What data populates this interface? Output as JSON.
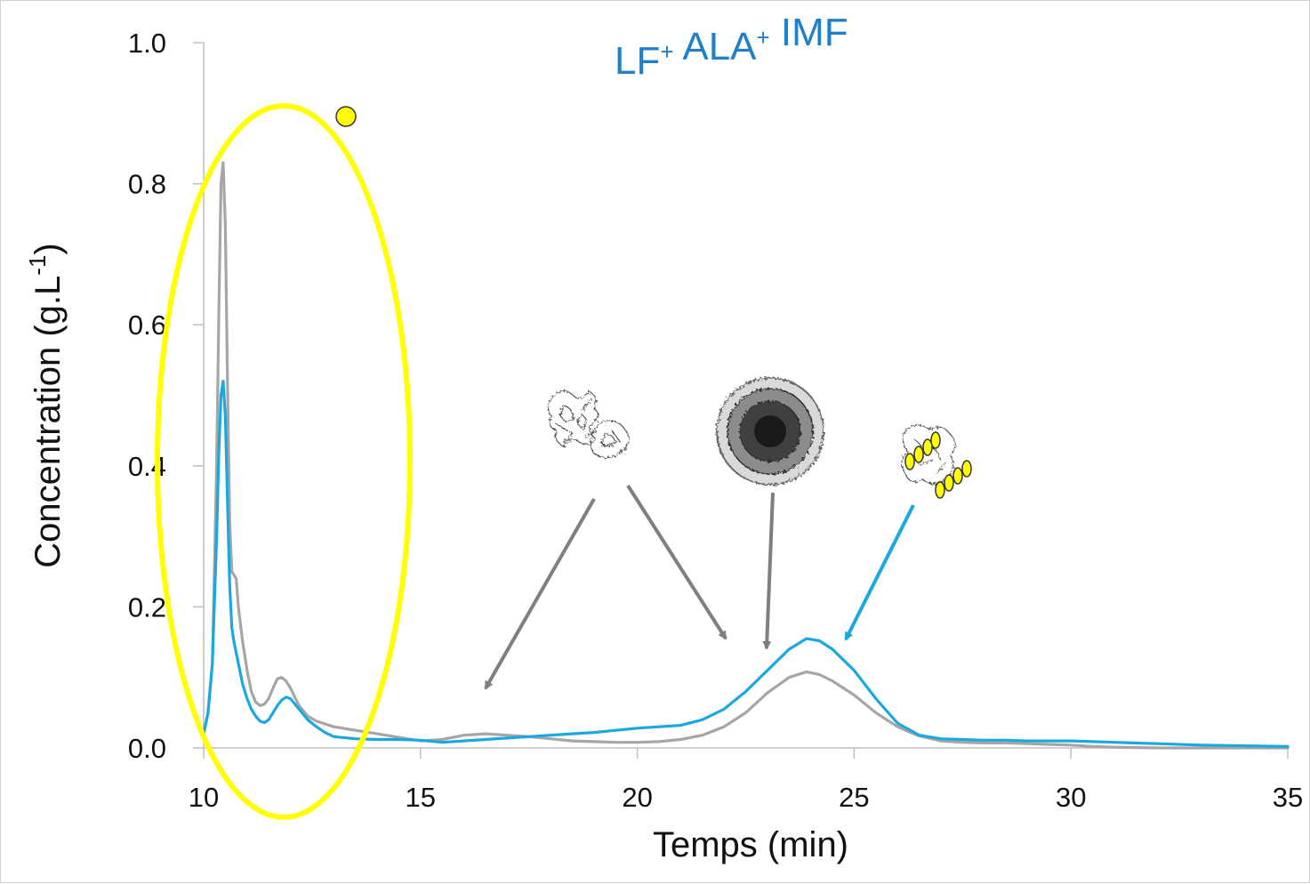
{
  "chart_data": {
    "type": "line",
    "title": {
      "parts": [
        {
          "text": "LF",
          "sup": "+"
        },
        {
          "text": " ALA",
          "sup": "+"
        },
        {
          "text": " IMF",
          "sup": ""
        }
      ]
    },
    "title_color": "#1f7fc8",
    "xlabel": "Temps (min)",
    "ylabel": "Concentration (g.L",
    "ylabel_sup": "-1",
    "ylabel_suffix": ")",
    "xlim": [
      10,
      35
    ],
    "ylim": [
      0.0,
      1.0
    ],
    "x_ticks": [
      10,
      15,
      20,
      25,
      30,
      35
    ],
    "x_tick_labels": [
      "10",
      "15",
      "20",
      "25",
      "30",
      "35"
    ],
    "y_ticks": [
      0.0,
      0.2,
      0.4,
      0.6,
      0.8,
      1.0
    ],
    "y_tick_labels": [
      "0.0",
      "0.2",
      "0.4",
      "0.6",
      "0.8",
      "1.0"
    ],
    "grid": false,
    "legend": "none",
    "series": [
      {
        "color": "#a6a6a6",
        "x": [
          10.0,
          10.1,
          10.2,
          10.3,
          10.35,
          10.4,
          10.45,
          10.5,
          10.55,
          10.6,
          10.65,
          10.7,
          10.75,
          10.8,
          10.9,
          11.0,
          11.1,
          11.2,
          11.3,
          11.4,
          11.5,
          11.6,
          11.7,
          11.8,
          11.9,
          12.0,
          12.2,
          12.4,
          12.6,
          13.0,
          13.5,
          14.0,
          14.5,
          15.0,
          15.5,
          16.0,
          16.5,
          17.0,
          17.5,
          18.0,
          18.5,
          19.0,
          19.5,
          20.0,
          20.5,
          21.0,
          21.5,
          22.0,
          22.5,
          23.0,
          23.5,
          23.9,
          24.2,
          24.5,
          25.0,
          25.5,
          26.0,
          26.5,
          27.0,
          27.5,
          28.0,
          28.5,
          29.0,
          29.5,
          30.0,
          30.5,
          31.0,
          32.0,
          33.0,
          34.0,
          35.0
        ],
        "y": [
          0.02,
          0.05,
          0.12,
          0.4,
          0.62,
          0.8,
          0.83,
          0.74,
          0.52,
          0.32,
          0.25,
          0.245,
          0.24,
          0.2,
          0.15,
          0.11,
          0.08,
          0.065,
          0.06,
          0.062,
          0.07,
          0.085,
          0.098,
          0.1,
          0.095,
          0.085,
          0.06,
          0.045,
          0.038,
          0.03,
          0.025,
          0.02,
          0.015,
          0.01,
          0.012,
          0.018,
          0.02,
          0.018,
          0.016,
          0.013,
          0.01,
          0.009,
          0.008,
          0.008,
          0.009,
          0.012,
          0.018,
          0.03,
          0.05,
          0.078,
          0.1,
          0.108,
          0.104,
          0.095,
          0.075,
          0.05,
          0.03,
          0.017,
          0.01,
          0.008,
          0.007,
          0.007,
          0.006,
          0.005,
          0.004,
          0.002,
          0.001,
          0.0,
          0.0,
          0.0,
          0.0
        ]
      },
      {
        "color": "#1ba8e0",
        "x": [
          10.0,
          10.1,
          10.2,
          10.3,
          10.35,
          10.4,
          10.45,
          10.5,
          10.55,
          10.6,
          10.65,
          10.7,
          10.8,
          10.9,
          11.0,
          11.1,
          11.2,
          11.3,
          11.4,
          11.5,
          11.6,
          11.7,
          11.8,
          11.9,
          12.0,
          12.2,
          12.4,
          12.6,
          12.8,
          13.0,
          13.5,
          14.0,
          14.5,
          15.0,
          15.5,
          16.0,
          16.5,
          17.0,
          17.5,
          18.0,
          18.5,
          19.0,
          19.5,
          20.0,
          20.5,
          21.0,
          21.5,
          22.0,
          22.5,
          23.0,
          23.5,
          23.9,
          24.2,
          24.5,
          25.0,
          25.5,
          26.0,
          26.5,
          27.0,
          27.5,
          28.0,
          28.5,
          29.0,
          29.5,
          30.0,
          30.5,
          31.0,
          32.0,
          33.0,
          34.0,
          35.0
        ],
        "y": [
          0.02,
          0.05,
          0.12,
          0.3,
          0.42,
          0.5,
          0.52,
          0.47,
          0.35,
          0.23,
          0.17,
          0.15,
          0.12,
          0.09,
          0.07,
          0.055,
          0.045,
          0.038,
          0.036,
          0.04,
          0.05,
          0.06,
          0.068,
          0.072,
          0.07,
          0.055,
          0.04,
          0.03,
          0.022,
          0.016,
          0.013,
          0.012,
          0.012,
          0.011,
          0.008,
          0.01,
          0.012,
          0.014,
          0.016,
          0.018,
          0.02,
          0.022,
          0.025,
          0.028,
          0.03,
          0.032,
          0.04,
          0.055,
          0.08,
          0.11,
          0.14,
          0.155,
          0.152,
          0.14,
          0.11,
          0.07,
          0.035,
          0.018,
          0.013,
          0.012,
          0.011,
          0.011,
          0.01,
          0.01,
          0.01,
          0.009,
          0.008,
          0.006,
          0.004,
          0.003,
          0.002
        ]
      }
    ],
    "annotations": {
      "highlight_ellipse_color": "#ffff00",
      "dot_color": "#ffff00",
      "arrow_gray_color": "#7f7f7f",
      "arrow_blue_color": "#1ba8e0",
      "molecule_icons": [
        "lactoferrin-aggregate-icon",
        "casein-micelle-icon",
        "lactoferrin-alactalbumin-complex-icon"
      ]
    }
  }
}
